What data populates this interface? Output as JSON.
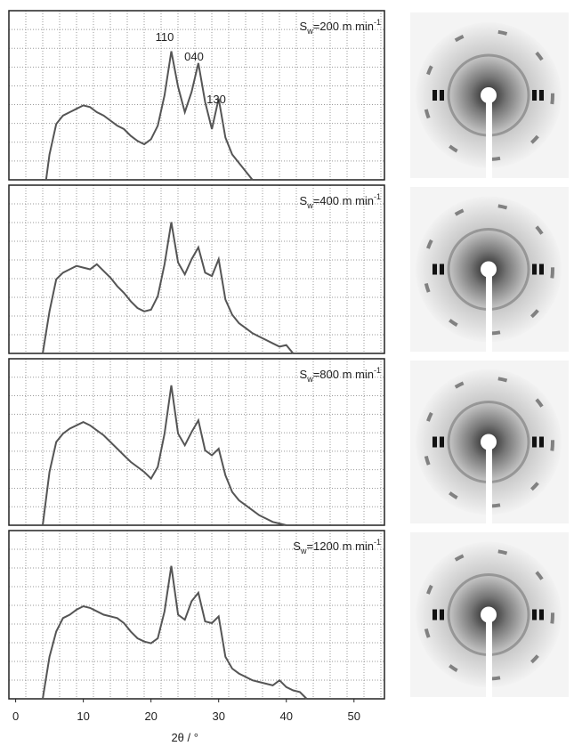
{
  "chart_data": [
    {
      "type": "line",
      "label": {
        "symbol": "S",
        "subscript": "w",
        "text": "=200 m min",
        "superscript": "-1"
      },
      "annotations": [
        "110",
        "040",
        "130"
      ],
      "xlim": [
        -1,
        54.5
      ],
      "ylim": [
        0,
        10
      ],
      "x": [
        4.5,
        5,
        6,
        7,
        8,
        9,
        10,
        11,
        12,
        13,
        14,
        15,
        16,
        17,
        18,
        19,
        20,
        21,
        22,
        23,
        24,
        25,
        26,
        27,
        28,
        29,
        30,
        31,
        32,
        33,
        34,
        35
      ],
      "values": [
        0,
        1.5,
        3.3,
        3.8,
        4.0,
        4.2,
        4.4,
        4.3,
        4.0,
        3.8,
        3.5,
        3.2,
        3.0,
        2.6,
        2.3,
        2.1,
        2.4,
        3.2,
        5.0,
        7.6,
        5.5,
        4.0,
        5.2,
        6.9,
        4.6,
        3.0,
        4.8,
        2.5,
        1.5,
        1.0,
        0.5,
        0
      ],
      "color": "#555555"
    },
    {
      "type": "line",
      "label": {
        "symbol": "S",
        "subscript": "w",
        "text": "=400 m min",
        "superscript": "-1"
      },
      "xlim": [
        -1,
        54.5
      ],
      "ylim": [
        0,
        10
      ],
      "x": [
        4,
        5,
        6,
        7,
        8,
        9,
        10,
        11,
        12,
        13,
        14,
        15,
        16,
        17,
        18,
        19,
        20,
        21,
        22,
        23,
        24,
        25,
        26,
        27,
        28,
        29,
        30,
        31,
        32,
        33,
        34,
        35,
        36,
        37,
        38,
        39,
        40,
        41
      ],
      "values": [
        0,
        2.5,
        4.4,
        4.8,
        5.0,
        5.2,
        5.1,
        5.0,
        5.3,
        4.9,
        4.5,
        4.0,
        3.6,
        3.1,
        2.7,
        2.5,
        2.6,
        3.4,
        5.3,
        7.8,
        5.4,
        4.7,
        5.6,
        6.3,
        4.8,
        4.6,
        5.6,
        3.2,
        2.3,
        1.8,
        1.5,
        1.2,
        1.0,
        0.8,
        0.6,
        0.4,
        0.5,
        0
      ],
      "color": "#555555"
    },
    {
      "type": "line",
      "label": {
        "symbol": "S",
        "subscript": "w",
        "text": "=800 m min",
        "superscript": "-1"
      },
      "xlim": [
        -1,
        54.5
      ],
      "ylim": [
        0,
        10
      ],
      "x": [
        4,
        5,
        6,
        7,
        8,
        9,
        10,
        11,
        12,
        13,
        14,
        15,
        16,
        17,
        18,
        19,
        20,
        21,
        22,
        23,
        24,
        25,
        26,
        27,
        28,
        29,
        30,
        31,
        32,
        33,
        34,
        35,
        36,
        37,
        38,
        39,
        40
      ],
      "values": [
        0,
        3.2,
        5.0,
        5.5,
        5.8,
        6.0,
        6.2,
        6.0,
        5.7,
        5.4,
        5.0,
        4.6,
        4.2,
        3.8,
        3.5,
        3.2,
        2.8,
        3.5,
        5.5,
        8.4,
        5.5,
        4.8,
        5.6,
        6.3,
        4.5,
        4.2,
        4.6,
        3.0,
        2.0,
        1.5,
        1.2,
        0.9,
        0.6,
        0.4,
        0.2,
        0.1,
        0
      ],
      "color": "#555555"
    },
    {
      "type": "line",
      "label": {
        "symbol": "S",
        "subscript": "w",
        "text": "=1200 m min",
        "superscript": "-1"
      },
      "xlim": [
        -1,
        54.5
      ],
      "ylim": [
        0,
        10
      ],
      "xticks": [
        0,
        10,
        20,
        30,
        40,
        50
      ],
      "x_label": "2θ / °",
      "x": [
        4,
        5,
        6,
        7,
        8,
        9,
        10,
        11,
        12,
        13,
        14,
        15,
        16,
        17,
        18,
        19,
        20,
        21,
        22,
        23,
        24,
        25,
        26,
        27,
        28,
        29,
        30,
        31,
        32,
        33,
        34,
        35,
        36,
        37,
        38,
        39,
        40,
        41,
        42,
        43
      ],
      "values": [
        0,
        2.5,
        4.0,
        4.8,
        5.0,
        5.3,
        5.5,
        5.4,
        5.2,
        5.0,
        4.9,
        4.8,
        4.5,
        4.0,
        3.6,
        3.4,
        3.3,
        3.6,
        5.2,
        7.9,
        5.0,
        4.7,
        5.8,
        6.3,
        4.6,
        4.5,
        4.9,
        2.5,
        1.8,
        1.5,
        1.3,
        1.1,
        1.0,
        0.9,
        0.8,
        1.1,
        0.7,
        0.5,
        0.4,
        0
      ],
      "color": "#555555"
    }
  ]
}
